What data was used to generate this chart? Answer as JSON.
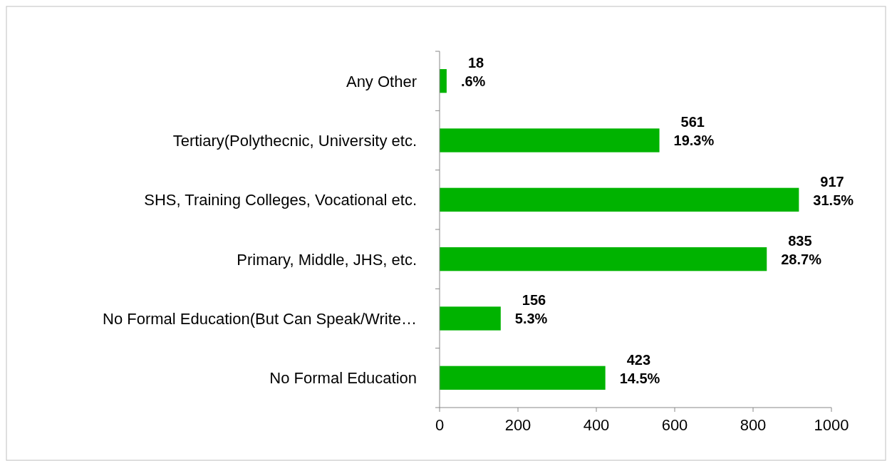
{
  "chart_data": {
    "type": "bar",
    "orientation": "horizontal",
    "categories": [
      "Any Other",
      "Tertiary(Polythecnic, University etc.",
      "SHS, Training Colleges, Vocational etc.",
      "Primary, Middle, JHS, etc.",
      "No Formal Education(But Can Speak/Write…",
      "No Formal Education"
    ],
    "values": [
      18,
      561,
      917,
      835,
      156,
      423
    ],
    "value_labels": [
      "18\n.6%",
      "561\n19.3%",
      "917\n31.5%",
      "835\n28.7%",
      "156\n5.3%",
      "423\n14.5%"
    ],
    "color": "#00b300",
    "xlim": [
      0,
      1000
    ],
    "xticks": [
      0,
      200,
      400,
      600,
      800,
      1000
    ],
    "grid": false
  }
}
